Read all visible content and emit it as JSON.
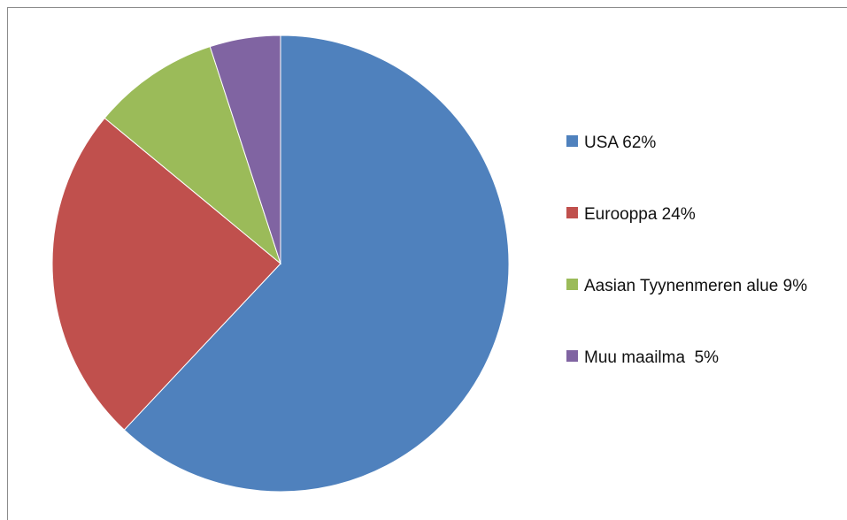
{
  "chart_data": {
    "type": "pie",
    "title": "",
    "legend_position": "right",
    "slices": [
      {
        "label": "USA 62%",
        "value": 62,
        "color": "#4F81BD"
      },
      {
        "label": "Eurooppa 24%",
        "value": 24,
        "color": "#C0504D"
      },
      {
        "label": "Aasian Tyynenmeren alue 9%",
        "value": 9,
        "color": "#9BBB59"
      },
      {
        "label": "Muu maailma  5%",
        "value": 5,
        "color": "#8064A2"
      }
    ]
  }
}
